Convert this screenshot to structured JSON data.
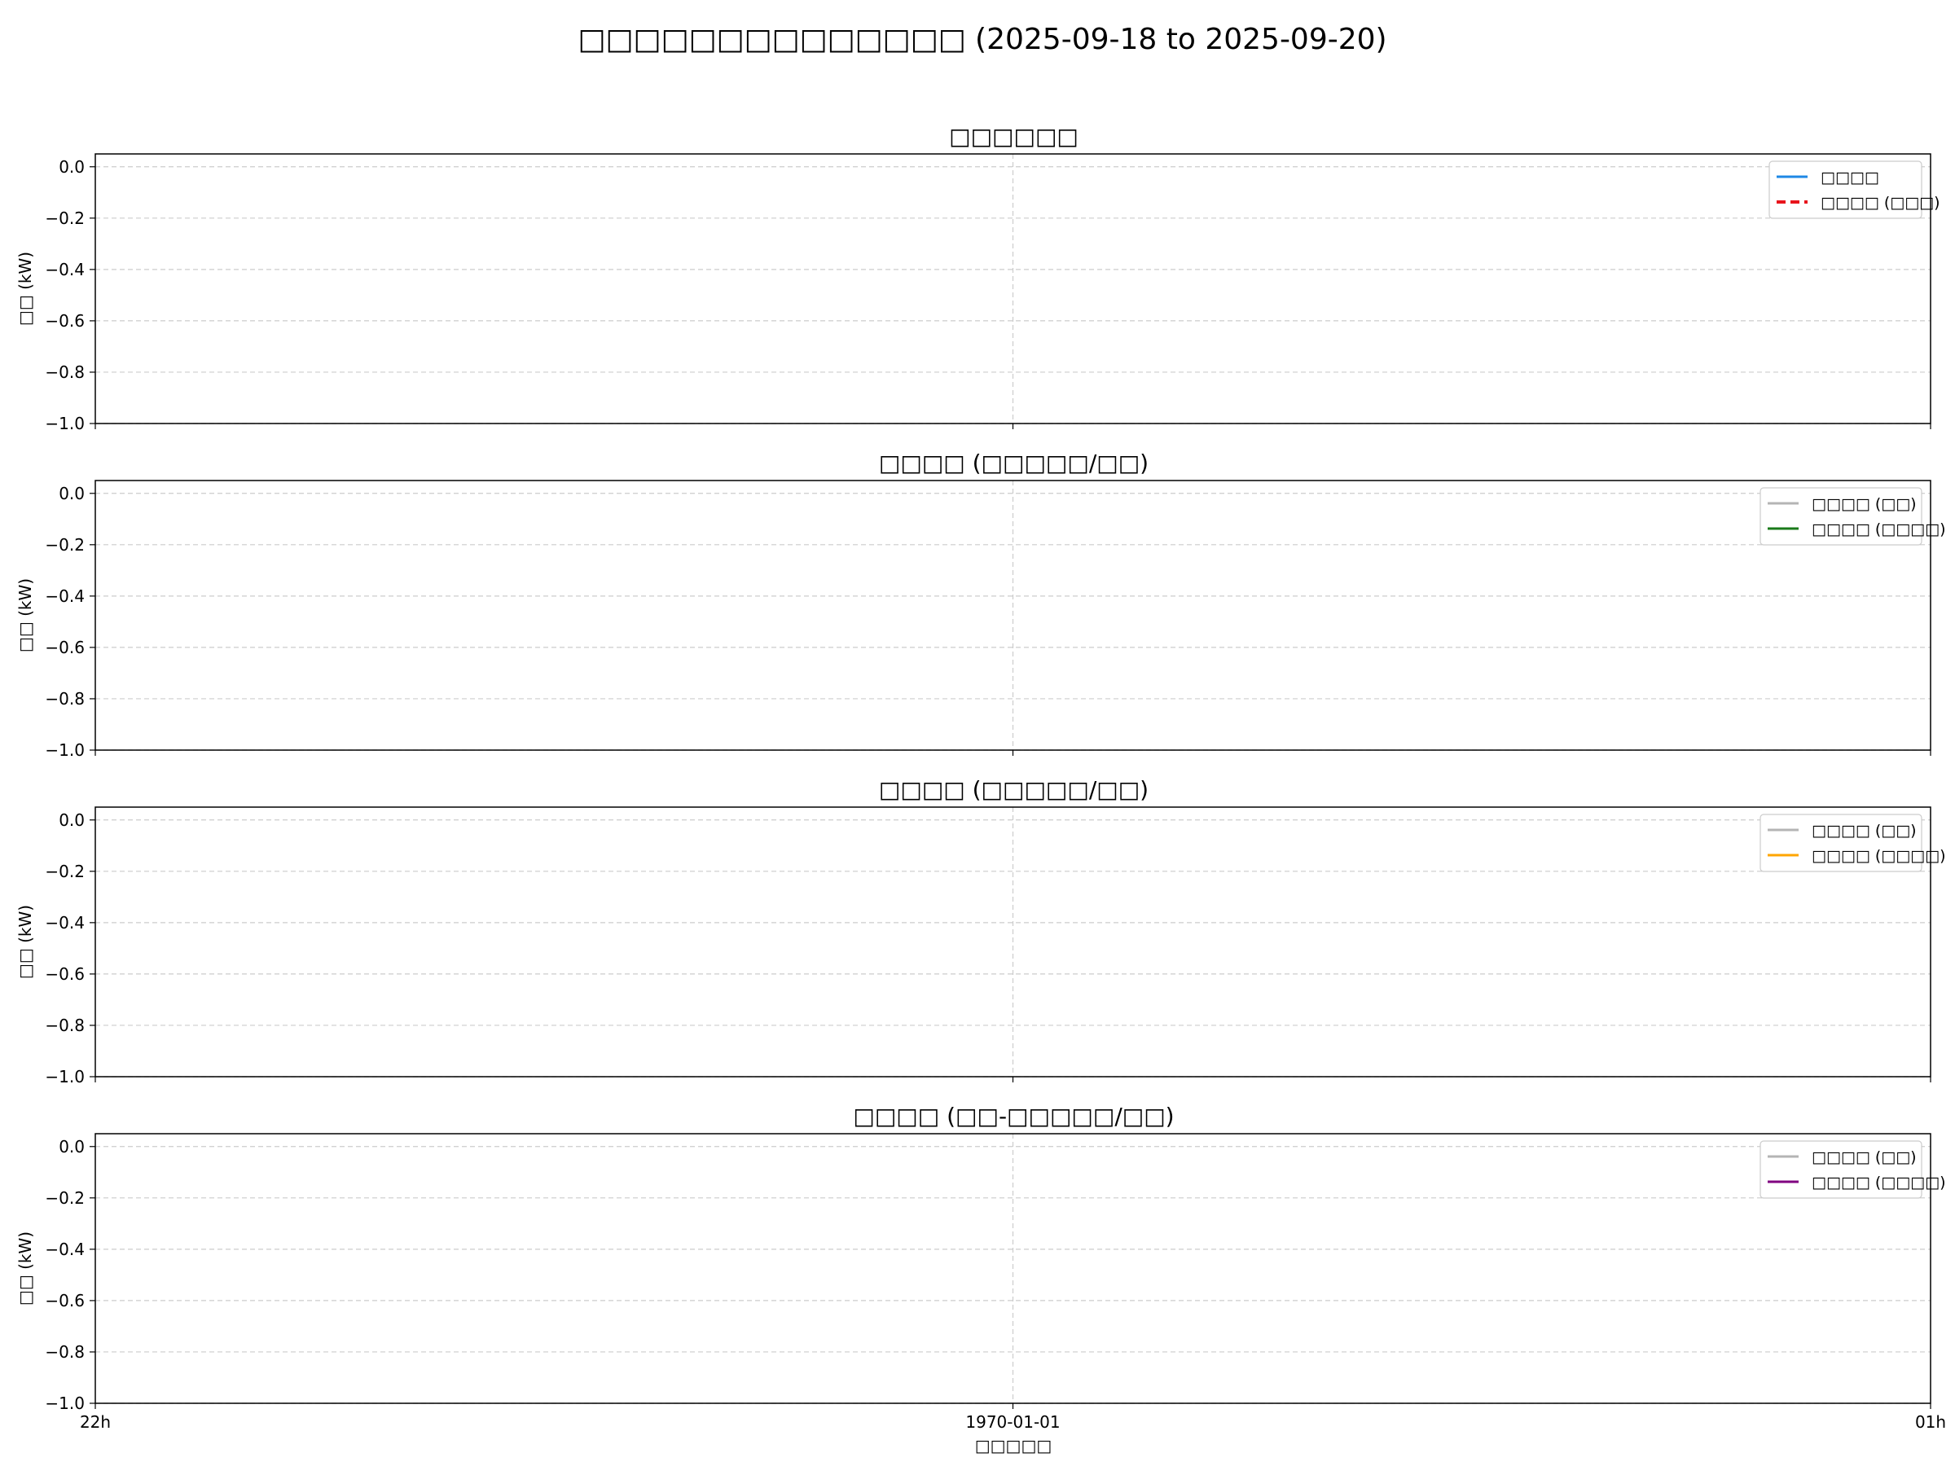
{
  "figure": {
    "title": "□□□□□□□□□□□□□□ (2025-09-18 to 2025-09-20)",
    "xlabel": "□□□□□",
    "x_ticks": [
      "22h",
      "1970-01-01",
      "01h"
    ]
  },
  "chart_data": [
    {
      "type": "line",
      "title": "□□□□□□",
      "ylabel": "□□ (kW)",
      "ylim": [
        -1.0,
        0.05
      ],
      "yticks": [
        "0.0",
        "−0.2",
        "−0.4",
        "−0.6",
        "−0.8",
        "−1.0"
      ],
      "grid": true,
      "legend_position": "top-right",
      "series": [
        {
          "name": "□□□□",
          "color": "#1e88e5",
          "style": "solid",
          "values": []
        },
        {
          "name": "□□□□ (□□□)",
          "color": "#e8141c",
          "style": "dashed",
          "values": []
        }
      ]
    },
    {
      "type": "line",
      "title": "□□□□ (□□□□□/□□)",
      "ylabel": "□□ (kW)",
      "ylim": [
        -1.0,
        0.05
      ],
      "yticks": [
        "0.0",
        "−0.2",
        "−0.4",
        "−0.6",
        "−0.8",
        "−1.0"
      ],
      "grid": true,
      "legend_position": "top-right",
      "series": [
        {
          "name": "□□□□ (□□)",
          "color": "#b4b4b4",
          "style": "solid",
          "values": []
        },
        {
          "name": "□□□□ (□□□□)",
          "color": "#1a7a1a",
          "style": "solid",
          "values": []
        }
      ]
    },
    {
      "type": "line",
      "title": "□□□□ (□□□□□/□□)",
      "ylabel": "□□ (kW)",
      "ylim": [
        -1.0,
        0.05
      ],
      "yticks": [
        "0.0",
        "−0.2",
        "−0.4",
        "−0.6",
        "−0.8",
        "−1.0"
      ],
      "grid": true,
      "legend_position": "top-right",
      "series": [
        {
          "name": "□□□□ (□□)",
          "color": "#b4b4b4",
          "style": "solid",
          "values": []
        },
        {
          "name": "□□□□ (□□□□)",
          "color": "#ffa500",
          "style": "solid",
          "values": []
        }
      ]
    },
    {
      "type": "line",
      "title": "□□□□ (□□-□□□□□/□□)",
      "ylabel": "□□ (kW)",
      "ylim": [
        -1.0,
        0.05
      ],
      "yticks": [
        "0.0",
        "−0.2",
        "−0.4",
        "−0.6",
        "−0.8",
        "−1.0"
      ],
      "grid": true,
      "legend_position": "top-right",
      "series": [
        {
          "name": "□□□□ (□□)",
          "color": "#b4b4b4",
          "style": "solid",
          "values": []
        },
        {
          "name": "□□□□ (□□□□)",
          "color": "#800080",
          "style": "solid",
          "values": []
        }
      ]
    }
  ]
}
